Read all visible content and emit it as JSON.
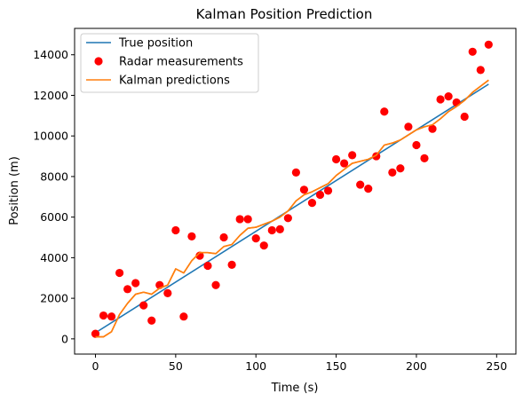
{
  "chart_data": {
    "type": "line",
    "title": "Kalman Position Prediction",
    "xlabel": "Time (s)",
    "ylabel": "Position (m)",
    "xlim": [
      -13,
      262
    ],
    "ylim": [
      -750,
      15300
    ],
    "x_ticks": [
      0,
      50,
      100,
      150,
      200,
      250
    ],
    "y_ticks": [
      0,
      2000,
      4000,
      6000,
      8000,
      10000,
      12000,
      14000
    ],
    "grid": false,
    "legend_position": "upper-left",
    "series": [
      {
        "name": "True position",
        "kind": "line",
        "color": "#1f77b4",
        "x": [
          0,
          245
        ],
        "y": [
          300,
          12550
        ]
      },
      {
        "name": "Radar measurements",
        "kind": "scatter",
        "color": "#ff0000",
        "x": [
          0,
          5,
          10,
          15,
          20,
          25,
          30,
          35,
          40,
          45,
          50,
          55,
          60,
          65,
          70,
          75,
          80,
          85,
          90,
          95,
          100,
          105,
          110,
          115,
          120,
          125,
          130,
          135,
          140,
          145,
          150,
          155,
          160,
          165,
          170,
          175,
          180,
          185,
          190,
          195,
          200,
          205,
          210,
          215,
          220,
          225,
          230,
          235,
          240,
          245
        ],
        "y": [
          250,
          1150,
          1100,
          3250,
          2450,
          2750,
          1650,
          900,
          2650,
          2250,
          5350,
          1100,
          5050,
          4100,
          3600,
          2650,
          5000,
          3650,
          5900,
          5900,
          4950,
          4600,
          5350,
          5400,
          5950,
          8200,
          7350,
          6700,
          7100,
          7300,
          8850,
          8650,
          9050,
          7600,
          7400,
          9000,
          11200,
          8200,
          8400,
          10450,
          9550,
          8900,
          10350,
          11800,
          11950,
          11650,
          10950,
          14150,
          13250,
          14500
        ]
      },
      {
        "name": "Kalman predictions",
        "kind": "line",
        "color": "#ff7f0e",
        "x": [
          0,
          5,
          10,
          15,
          20,
          25,
          30,
          35,
          40,
          45,
          50,
          55,
          60,
          65,
          70,
          75,
          80,
          85,
          90,
          95,
          100,
          105,
          110,
          115,
          120,
          125,
          130,
          135,
          140,
          145,
          150,
          155,
          160,
          165,
          170,
          175,
          180,
          185,
          190,
          195,
          200,
          205,
          210,
          215,
          220,
          225,
          230,
          235,
          240,
          245
        ],
        "y": [
          100,
          100,
          350,
          1200,
          1750,
          2200,
          2300,
          2200,
          2500,
          2650,
          3450,
          3250,
          3850,
          4250,
          4250,
          4200,
          4550,
          4650,
          5100,
          5450,
          5500,
          5650,
          5800,
          6000,
          6300,
          6800,
          7100,
          7250,
          7450,
          7650,
          8050,
          8350,
          8650,
          8750,
          8850,
          9050,
          9550,
          9650,
          9800,
          10050,
          10300,
          10450,
          10550,
          10850,
          11200,
          11450,
          11750,
          12150,
          12450,
          12750
        ]
      }
    ]
  }
}
